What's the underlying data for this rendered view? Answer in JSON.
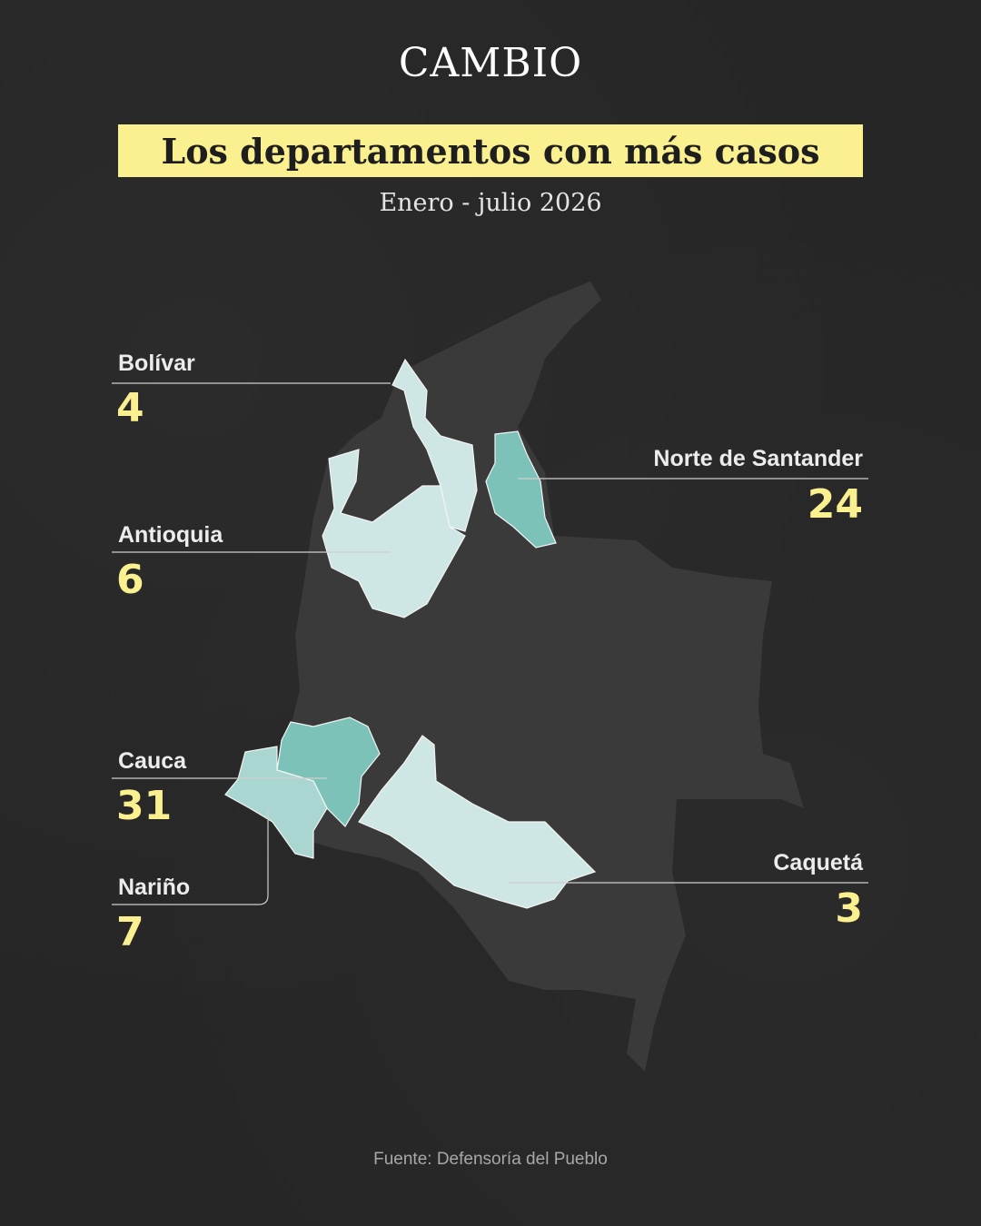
{
  "brand": "CAMBIO",
  "title": "Los departamentos con más casos",
  "subtitle": "Enero - julio 2026",
  "colors": {
    "background": "#262626",
    "country": "#3a3a3a",
    "highlight": "#fbf08f",
    "dept_light": "#cfe7e4",
    "dept_mid": "#a9d6d1",
    "dept_dark": "#7cc2b9"
  },
  "departments": [
    {
      "name": "Bolívar",
      "cases": "4"
    },
    {
      "name": "Norte de Santander",
      "cases": "24"
    },
    {
      "name": "Antioquia",
      "cases": "6"
    },
    {
      "name": "Cauca",
      "cases": "31"
    },
    {
      "name": "Nariño",
      "cases": "7"
    },
    {
      "name": "Caquetá",
      "cases": "3"
    }
  ],
  "source": "Fuente: Defensoría del Pueblo"
}
